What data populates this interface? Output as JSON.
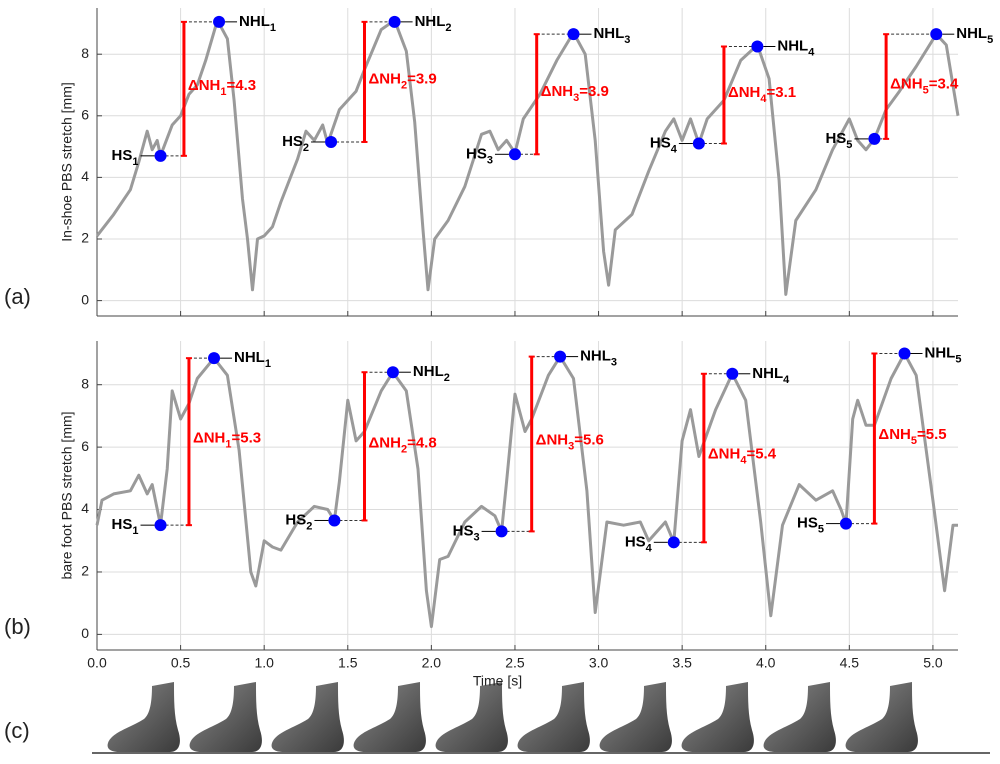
{
  "panel_labels": [
    "(a)",
    "(b)",
    "(c)"
  ],
  "chart_data": [
    {
      "type": "line",
      "ylabel": "In-shoe PBS stretch [mm]",
      "xlim": [
        0,
        5.15
      ],
      "ylim": [
        -0.5,
        9.5
      ],
      "yticks": [
        0,
        2,
        4,
        6,
        8
      ],
      "grid": true,
      "sharex": true,
      "series": [
        {
          "color": "#9a9a9a",
          "x": [
            0,
            0.1,
            0.2,
            0.25,
            0.3,
            0.33,
            0.36,
            0.38,
            0.45,
            0.5,
            0.55,
            0.6,
            0.65,
            0.72,
            0.78,
            0.82,
            0.87,
            0.9,
            0.93,
            0.96,
            1.0,
            1.05,
            1.1,
            1.2,
            1.25,
            1.3,
            1.35,
            1.38,
            1.45,
            1.5,
            1.55,
            1.6,
            1.7,
            1.78,
            1.85,
            1.9,
            1.95,
            1.98,
            2.02,
            2.1,
            2.2,
            2.3,
            2.35,
            2.4,
            2.45,
            2.5,
            2.55,
            2.65,
            2.75,
            2.85,
            2.92,
            2.98,
            3.03,
            3.06,
            3.1,
            3.2,
            3.3,
            3.4,
            3.45,
            3.5,
            3.55,
            3.6,
            3.65,
            3.75,
            3.85,
            3.95,
            4.02,
            4.08,
            4.12,
            4.18,
            4.3,
            4.4,
            4.5,
            4.55,
            4.6,
            4.65,
            4.72,
            4.8,
            4.9,
            5.02,
            5.08,
            5.15
          ],
          "values": [
            2.1,
            2.8,
            3.6,
            4.5,
            5.5,
            4.9,
            5.2,
            4.7,
            5.7,
            6.0,
            6.7,
            7.0,
            7.8,
            9.1,
            8.5,
            6.5,
            3.3,
            2.0,
            0.35,
            2.0,
            2.1,
            2.4,
            3.2,
            4.6,
            5.5,
            5.2,
            5.7,
            5.1,
            6.2,
            6.5,
            6.8,
            7.5,
            8.8,
            9.1,
            8.1,
            5.8,
            2.3,
            0.35,
            2.0,
            2.6,
            3.7,
            5.4,
            5.5,
            4.9,
            5.2,
            4.8,
            5.9,
            6.7,
            7.8,
            8.7,
            8.0,
            5.2,
            1.6,
            0.5,
            2.3,
            2.8,
            4.2,
            5.5,
            5.9,
            5.2,
            5.9,
            5.1,
            5.9,
            6.5,
            7.8,
            8.3,
            7.2,
            3.9,
            0.2,
            2.6,
            3.6,
            4.9,
            5.9,
            5.2,
            4.9,
            5.25,
            6.2,
            6.8,
            7.6,
            8.65,
            8.3,
            6.0
          ]
        }
      ],
      "hs": {
        "label": "HS",
        "subs": [
          "1",
          "2",
          "3",
          "4",
          "5"
        ],
        "x": [
          0.38,
          1.4,
          2.5,
          3.6,
          4.65
        ],
        "y": [
          4.7,
          5.15,
          4.75,
          5.1,
          5.25
        ],
        "color": "#0000ff"
      },
      "nhl": {
        "label": "NHL",
        "subs": [
          "1",
          "2",
          "3",
          "4",
          "5"
        ],
        "x": [
          0.73,
          1.78,
          2.85,
          3.95,
          5.02
        ],
        "y": [
          9.05,
          9.05,
          8.65,
          8.25,
          8.65
        ],
        "color": "#0000ff"
      },
      "delta": {
        "label": "ΔNH",
        "subs": [
          "1",
          "2",
          "3",
          "4",
          "5"
        ],
        "bar_x": [
          0.52,
          1.6,
          2.63,
          3.75,
          4.72
        ],
        "values": [
          4.3,
          3.9,
          3.9,
          3.1,
          3.4
        ],
        "value_labels": [
          "=4.3",
          "=3.9",
          "=3.9",
          "=3.1",
          "=3.4"
        ],
        "color": "#ff0000"
      }
    },
    {
      "type": "line",
      "ylabel": "bare foot PBS stretch [mm]",
      "xlabel": "Time [s]",
      "xlim": [
        0,
        5.15
      ],
      "ylim": [
        -0.5,
        9.4
      ],
      "yticks": [
        0,
        2,
        4,
        6,
        8
      ],
      "grid": true,
      "xticks": [
        {
          "value": 0,
          "label": "0.0"
        },
        0.5,
        {
          "value": 1,
          "label": "1.0"
        },
        1.5,
        {
          "value": 2,
          "label": "2.0"
        },
        2.5,
        {
          "value": 3,
          "label": "3.0"
        },
        3.5,
        {
          "value": 4,
          "label": "4.0"
        },
        4.5,
        {
          "value": 5,
          "label": "5.0"
        }
      ],
      "series": [
        {
          "color": "#9a9a9a",
          "x": [
            0,
            0.03,
            0.1,
            0.2,
            0.25,
            0.3,
            0.33,
            0.38,
            0.42,
            0.45,
            0.5,
            0.55,
            0.6,
            0.7,
            0.78,
            0.85,
            0.92,
            0.95,
            1.0,
            1.05,
            1.1,
            1.2,
            1.3,
            1.38,
            1.42,
            1.45,
            1.5,
            1.55,
            1.6,
            1.7,
            1.77,
            1.85,
            1.92,
            1.97,
            2.0,
            2.05,
            2.1,
            2.2,
            2.3,
            2.38,
            2.42,
            2.45,
            2.5,
            2.56,
            2.6,
            2.7,
            2.77,
            2.85,
            2.93,
            2.98,
            3.05,
            3.15,
            3.25,
            3.3,
            3.4,
            3.45,
            3.5,
            3.55,
            3.6,
            3.7,
            3.8,
            3.88,
            3.97,
            4.03,
            4.1,
            4.2,
            4.3,
            4.4,
            4.45,
            4.48,
            4.52,
            4.55,
            4.6,
            4.65,
            4.75,
            4.83,
            4.9,
            5.0,
            5.07,
            5.12,
            5.15
          ],
          "values": [
            3.5,
            4.3,
            4.5,
            4.6,
            5.1,
            4.5,
            4.8,
            3.5,
            5.3,
            7.8,
            6.9,
            7.4,
            8.2,
            8.85,
            8.3,
            5.9,
            2.0,
            1.55,
            3.0,
            2.8,
            2.7,
            3.6,
            4.1,
            4.0,
            3.65,
            4.9,
            7.5,
            6.2,
            6.5,
            7.8,
            8.4,
            7.8,
            5.3,
            1.4,
            0.25,
            2.4,
            2.5,
            3.6,
            4.1,
            3.8,
            3.3,
            4.9,
            7.7,
            6.5,
            6.9,
            8.3,
            8.9,
            8.2,
            4.6,
            0.7,
            3.6,
            3.5,
            3.6,
            3.0,
            3.6,
            2.95,
            6.2,
            7.2,
            5.7,
            7.2,
            8.35,
            7.5,
            3.6,
            0.6,
            3.5,
            4.8,
            4.3,
            4.6,
            4.0,
            3.55,
            6.9,
            7.5,
            6.7,
            6.7,
            8.2,
            9.0,
            8.3,
            4.3,
            1.4,
            3.5,
            3.5
          ]
        }
      ],
      "hs": {
        "label": "HS",
        "subs": [
          "1",
          "2",
          "3",
          "4",
          "5"
        ],
        "x": [
          0.38,
          1.42,
          2.42,
          3.45,
          4.48
        ],
        "y": [
          3.5,
          3.65,
          3.3,
          2.95,
          3.55
        ],
        "color": "#0000ff"
      },
      "nhl": {
        "label": "NHL",
        "subs": [
          "1",
          "2",
          "3",
          "4",
          "5"
        ],
        "x": [
          0.7,
          1.77,
          2.77,
          3.8,
          4.83
        ],
        "y": [
          8.85,
          8.4,
          8.9,
          8.35,
          9.0
        ],
        "color": "#0000ff"
      },
      "delta": {
        "label": "ΔNH",
        "subs": [
          "1",
          "2",
          "3",
          "4",
          "5"
        ],
        "bar_x": [
          0.55,
          1.6,
          2.6,
          3.63,
          4.65
        ],
        "values": [
          5.3,
          4.8,
          5.6,
          5.4,
          5.5
        ],
        "value_labels": [
          "=5.3",
          "=4.8",
          "=5.6",
          "=5.4",
          "=5.5"
        ],
        "color": "#ff0000"
      }
    }
  ]
}
